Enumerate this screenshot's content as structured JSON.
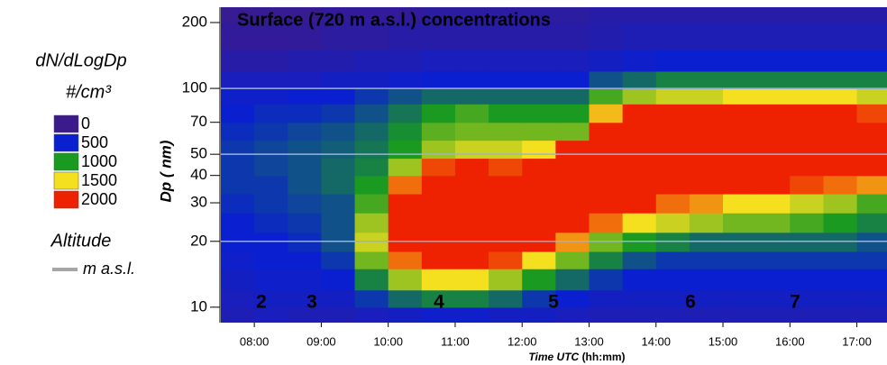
{
  "chart_data": {
    "type": "heatmap",
    "title": "Surface (720 m a.s.l.) concentrations",
    "y_label": "Dp ( nm)",
    "x_label": "Time UTC",
    "x_label_unit": "(hh:mm)",
    "legend_title": "dN/dLogDp",
    "legend_unit": "#/cm³",
    "altitude_label": "Altitude",
    "altitude_unit": "m a.s.l.",
    "altitude_color": "#a6a6a6",
    "annotations": [
      "2",
      "3",
      "4",
      "5",
      "6",
      "7"
    ],
    "annotation_color": "#ffe81a",
    "colorscale": [
      {
        "value": 0,
        "color": "#3b1a8c"
      },
      {
        "value": 500,
        "color": "#0a20d0"
      },
      {
        "value": 1000,
        "color": "#1a9a20"
      },
      {
        "value": 1500,
        "color": "#f5e020"
      },
      {
        "value": 2000,
        "color": "#ee2200"
      }
    ],
    "y_log": true,
    "ylim": [
      8.5,
      235
    ],
    "yticks": [
      10,
      20,
      30,
      40,
      50,
      70,
      100,
      200
    ],
    "grid_at": [
      20,
      50,
      100
    ],
    "grid_color": "#9fb0d8",
    "xlim": [
      7.5,
      17.45
    ],
    "xticks": [
      {
        "value": 8,
        "label": "08:00"
      },
      {
        "value": 9,
        "label": "09:00"
      },
      {
        "value": 10,
        "label": "10:00"
      },
      {
        "value": 11,
        "label": "11:00"
      },
      {
        "value": 12,
        "label": "12:00"
      },
      {
        "value": 13,
        "label": "13:00"
      },
      {
        "value": 14,
        "label": "14:00"
      },
      {
        "value": 15,
        "label": "15:00"
      },
      {
        "value": 16,
        "label": "16:00"
      },
      {
        "value": 17,
        "label": "17:00"
      }
    ],
    "x_bins": [
      7.5,
      8,
      8.5,
      9,
      9.5,
      10,
      10.5,
      11,
      11.5,
      12,
      12.5,
      13,
      13.5,
      14,
      14.5,
      15,
      15.5,
      16,
      16.5,
      17,
      17.5
    ],
    "y_bins": [
      8.5,
      10,
      12,
      15,
      18,
      22,
      27,
      33,
      40,
      48,
      58,
      70,
      85,
      100,
      120,
      150,
      200,
      235
    ],
    "z": [
      [
        300,
        350,
        300,
        300,
        350,
        400,
        450,
        450,
        400,
        400,
        350,
        300,
        300,
        300,
        300,
        300,
        300,
        300,
        300,
        300
      ],
      [
        350,
        400,
        400,
        400,
        600,
        800,
        900,
        900,
        800,
        600,
        500,
        400,
        400,
        400,
        400,
        400,
        400,
        400,
        400,
        400
      ],
      [
        400,
        450,
        450,
        500,
        900,
        1300,
        1500,
        1500,
        1300,
        1000,
        800,
        600,
        500,
        500,
        500,
        500,
        500,
        500,
        500,
        500
      ],
      [
        450,
        500,
        500,
        600,
        1200,
        1800,
        2200,
        2200,
        1900,
        1500,
        1200,
        900,
        700,
        600,
        600,
        600,
        600,
        600,
        600,
        600
      ],
      [
        500,
        500,
        550,
        700,
        1400,
        2300,
        2500,
        2500,
        2400,
        2000,
        1700,
        1200,
        1000,
        900,
        800,
        800,
        800,
        800,
        800,
        700
      ],
      [
        500,
        550,
        600,
        700,
        1300,
        2500,
        2600,
        2600,
        2600,
        2400,
        2300,
        1800,
        1500,
        1400,
        1300,
        1200,
        1200,
        1100,
        1000,
        900
      ],
      [
        550,
        600,
        650,
        700,
        1100,
        2300,
        2600,
        2600,
        2600,
        2500,
        2400,
        2200,
        2000,
        1800,
        1700,
        1500,
        1500,
        1400,
        1300,
        1100
      ],
      [
        600,
        600,
        700,
        800,
        1000,
        1800,
        2500,
        2500,
        2500,
        2500,
        2400,
        2400,
        2300,
        2200,
        2100,
        2000,
        2000,
        1900,
        1800,
        1700
      ],
      [
        600,
        650,
        700,
        800,
        900,
        1300,
        1900,
        2000,
        1900,
        2200,
        2400,
        2500,
        2500,
        2400,
        2400,
        2300,
        2300,
        2200,
        2200,
        2200
      ],
      [
        600,
        650,
        700,
        750,
        850,
        1000,
        1300,
        1400,
        1400,
        1500,
        2000,
        2500,
        2500,
        2500,
        2500,
        2400,
        2400,
        2400,
        2400,
        2300
      ],
      [
        550,
        600,
        650,
        700,
        800,
        950,
        1150,
        1200,
        1200,
        1200,
        1200,
        2300,
        2500,
        2500,
        2500,
        2400,
        2400,
        2400,
        2400,
        2300
      ],
      [
        500,
        550,
        550,
        600,
        700,
        850,
        1000,
        1100,
        1000,
        1000,
        1000,
        1600,
        2000,
        2100,
        2000,
        2000,
        2000,
        2000,
        2000,
        1900
      ],
      [
        450,
        450,
        500,
        500,
        600,
        700,
        800,
        800,
        800,
        800,
        800,
        1100,
        1300,
        1400,
        1400,
        1500,
        1500,
        1500,
        1500,
        1400
      ],
      [
        350,
        350,
        350,
        400,
        400,
        450,
        500,
        500,
        500,
        500,
        500,
        700,
        800,
        900,
        900,
        900,
        900,
        900,
        900,
        900
      ],
      [
        200,
        200,
        250,
        250,
        300,
        300,
        350,
        350,
        350,
        350,
        350,
        400,
        450,
        500,
        500,
        500,
        500,
        500,
        500,
        500
      ],
      [
        100,
        100,
        100,
        150,
        150,
        200,
        200,
        200,
        200,
        200,
        200,
        250,
        300,
        300,
        300,
        300,
        300,
        300,
        300,
        300
      ],
      [
        50,
        50,
        50,
        100,
        100,
        100,
        150,
        150,
        150,
        150,
        150,
        200,
        200,
        200,
        200,
        200,
        200,
        200,
        200,
        200
      ]
    ]
  }
}
